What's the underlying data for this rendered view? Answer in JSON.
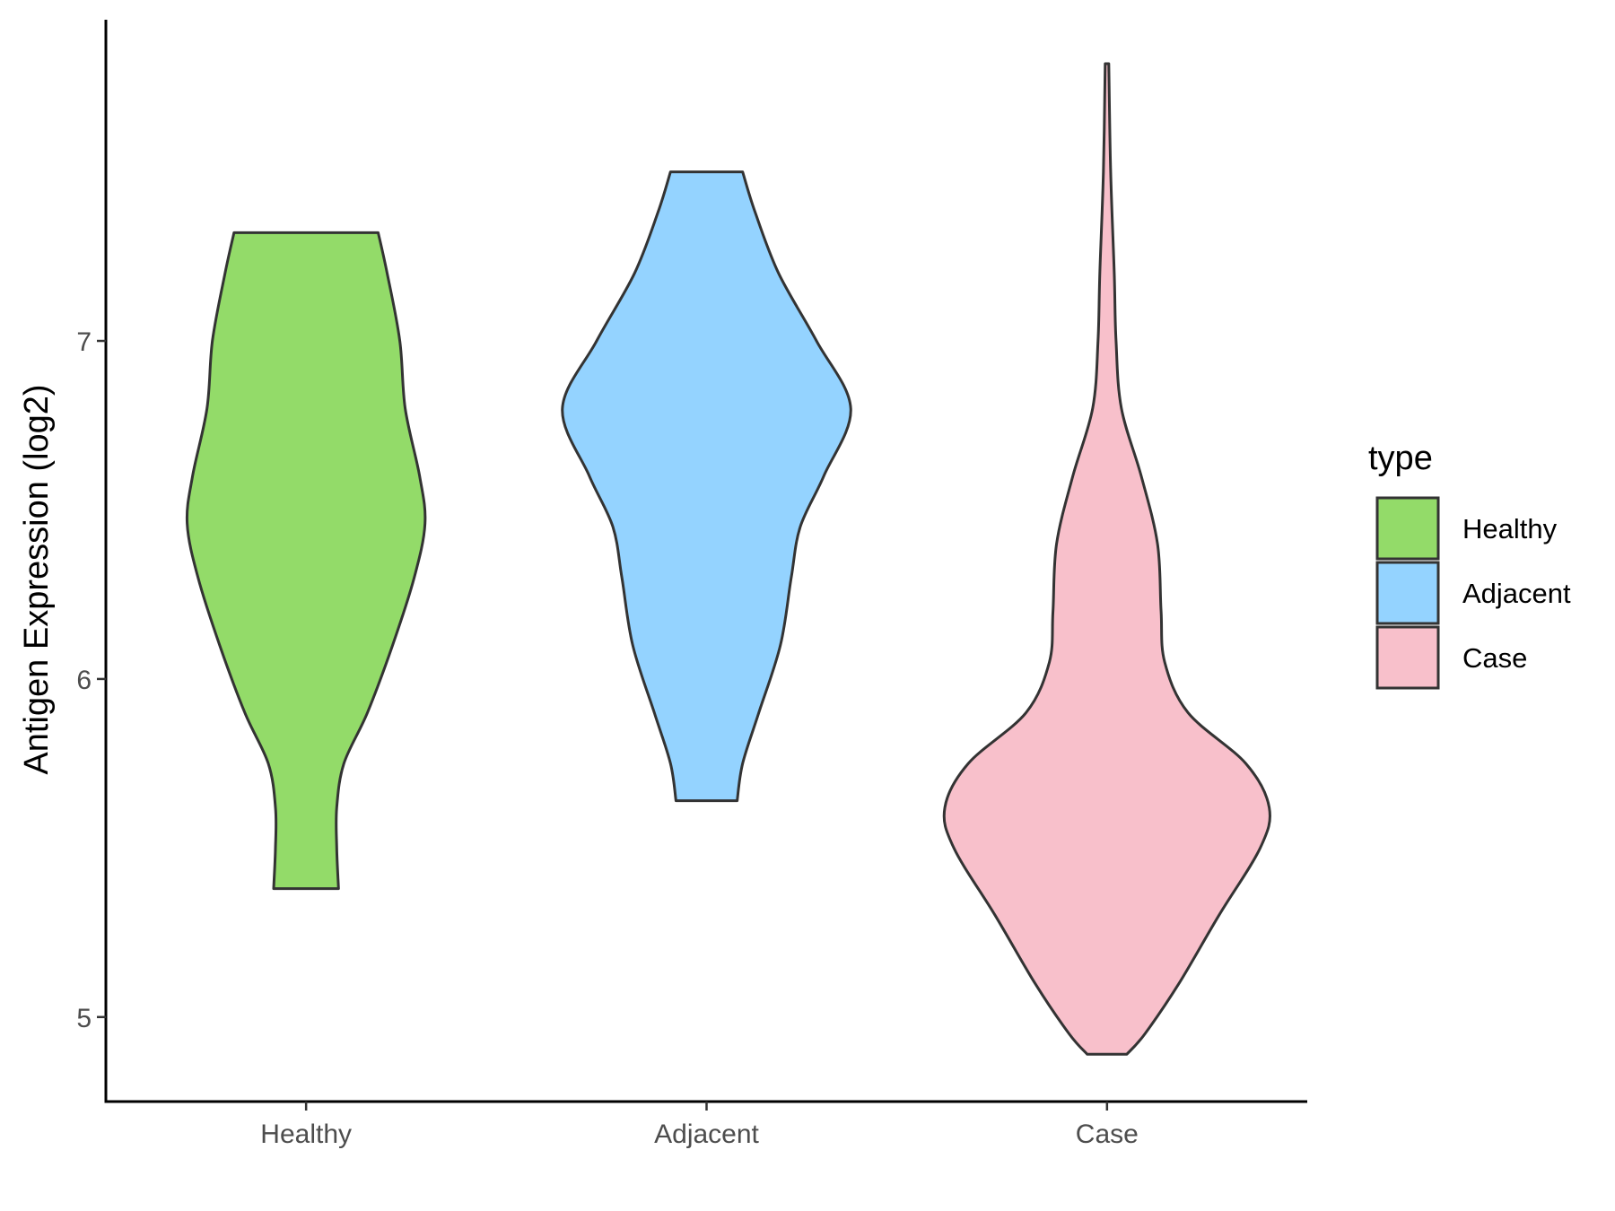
{
  "chart_data": {
    "type": "violin",
    "title": "",
    "xlabel": "",
    "ylabel": "Antigen Expression (log2)",
    "ylim": [
      4.75,
      7.95
    ],
    "yticks": [
      5,
      6,
      7
    ],
    "categories": [
      "Healthy",
      "Adjacent",
      "Case"
    ],
    "legend": {
      "title": "type",
      "position": "right",
      "items": [
        {
          "label": "Healthy",
          "color": "#93DB69"
        },
        {
          "label": "Adjacent",
          "color": "#94D3FF"
        },
        {
          "label": "Case",
          "color": "#F8C0CB"
        }
      ]
    },
    "series": [
      {
        "category": "Healthy",
        "color": "#93DB69",
        "min": 5.38,
        "max": 7.32,
        "density": [
          [
            7.32,
            0.4
          ],
          [
            7.2,
            0.45
          ],
          [
            7.0,
            0.52
          ],
          [
            6.8,
            0.55
          ],
          [
            6.6,
            0.63
          ],
          [
            6.46,
            0.66
          ],
          [
            6.3,
            0.6
          ],
          [
            6.1,
            0.48
          ],
          [
            5.9,
            0.34
          ],
          [
            5.75,
            0.21
          ],
          [
            5.62,
            0.17
          ],
          [
            5.5,
            0.17
          ],
          [
            5.38,
            0.18
          ]
        ]
      },
      {
        "category": "Adjacent",
        "color": "#94D3FF",
        "min": 5.64,
        "max": 7.5,
        "density": [
          [
            7.5,
            0.2
          ],
          [
            7.38,
            0.27
          ],
          [
            7.2,
            0.4
          ],
          [
            7.0,
            0.61
          ],
          [
            6.8,
            0.8
          ],
          [
            6.6,
            0.65
          ],
          [
            6.45,
            0.52
          ],
          [
            6.3,
            0.47
          ],
          [
            6.1,
            0.41
          ],
          [
            5.9,
            0.29
          ],
          [
            5.75,
            0.2
          ],
          [
            5.64,
            0.17
          ]
        ]
      },
      {
        "category": "Case",
        "color": "#F8C0CB",
        "min": 4.89,
        "max": 7.82,
        "density": [
          [
            7.82,
            0.01
          ],
          [
            7.5,
            0.02
          ],
          [
            7.2,
            0.04
          ],
          [
            7.0,
            0.05
          ],
          [
            6.8,
            0.08
          ],
          [
            6.6,
            0.19
          ],
          [
            6.4,
            0.28
          ],
          [
            6.2,
            0.3
          ],
          [
            6.05,
            0.32
          ],
          [
            5.9,
            0.45
          ],
          [
            5.75,
            0.77
          ],
          [
            5.62,
            0.9
          ],
          [
            5.5,
            0.85
          ],
          [
            5.3,
            0.62
          ],
          [
            5.1,
            0.4
          ],
          [
            4.95,
            0.21
          ],
          [
            4.89,
            0.11
          ]
        ]
      }
    ]
  }
}
